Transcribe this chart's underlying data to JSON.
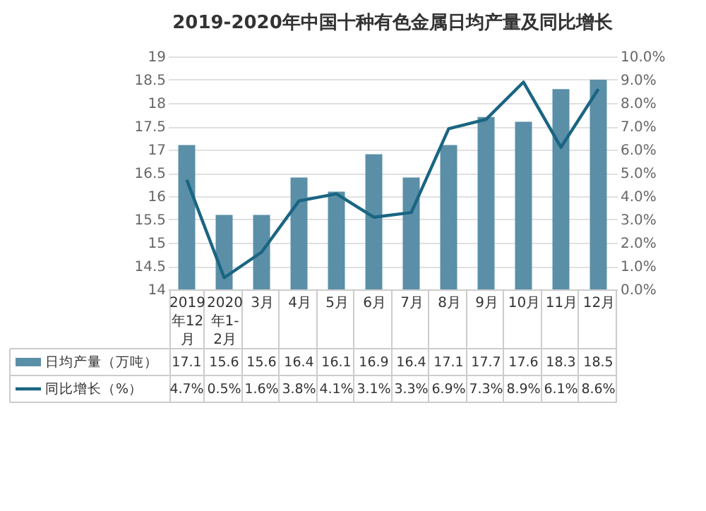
{
  "chart_data": {
    "type": "bar",
    "title": "2019-2020年中国十种有色金属日均产量及同比增长",
    "categories": [
      "2019年12月",
      "2020年1-2月",
      "3月",
      "4月",
      "5月",
      "6月",
      "7月",
      "8月",
      "9月",
      "10月",
      "11月",
      "12月"
    ],
    "series": [
      {
        "name": "日均产量（万吨）",
        "color": "#5b8fa8",
        "values": [
          17.1,
          15.6,
          15.6,
          16.4,
          16.1,
          16.9,
          16.4,
          17.1,
          17.7,
          17.6,
          18.3,
          18.5
        ],
        "value_labels": [
          "17.1",
          "15.6",
          "15.6",
          "16.4",
          "16.1",
          "16.9",
          "16.4",
          "17.1",
          "17.7",
          "17.6",
          "18.3",
          "18.5"
        ]
      },
      {
        "name": "同比增长（%）",
        "type": "line",
        "axis": "y2",
        "color": "#1a6582",
        "values": [
          4.7,
          0.5,
          1.6,
          3.8,
          4.1,
          3.1,
          3.3,
          6.9,
          7.3,
          8.9,
          6.1,
          8.6
        ],
        "value_labels": [
          "4.7%",
          "0.5%",
          "1.6%",
          "3.8%",
          "4.1%",
          "3.1%",
          "3.3%",
          "6.9%",
          "7.3%",
          "8.9%",
          "6.1%",
          "8.6%"
        ]
      }
    ],
    "ylim": [
      14,
      19
    ],
    "yticks": [
      14,
      14.5,
      15,
      15.5,
      16,
      16.5,
      17,
      17.5,
      18,
      18.5,
      19
    ],
    "y2lim": [
      0,
      10
    ],
    "y2ticks": [
      {
        "value": 0,
        "label": "0.0%"
      },
      {
        "value": 1,
        "label": "1.0%"
      },
      {
        "value": 2,
        "label": "2.0%"
      },
      {
        "value": 3,
        "label": "3.0%"
      },
      {
        "value": 4,
        "label": "4.0%"
      },
      {
        "value": 5,
        "label": "5.0%"
      },
      {
        "value": 6,
        "label": "6.0%"
      },
      {
        "value": 7,
        "label": "7.0%"
      },
      {
        "value": 8,
        "label": "8.0%"
      },
      {
        "value": 9,
        "label": "9.0%"
      },
      {
        "value": 10,
        "label": "10.0%"
      }
    ],
    "grid": "y",
    "legend": "bottom",
    "line_style": "solid",
    "marker": "none"
  }
}
